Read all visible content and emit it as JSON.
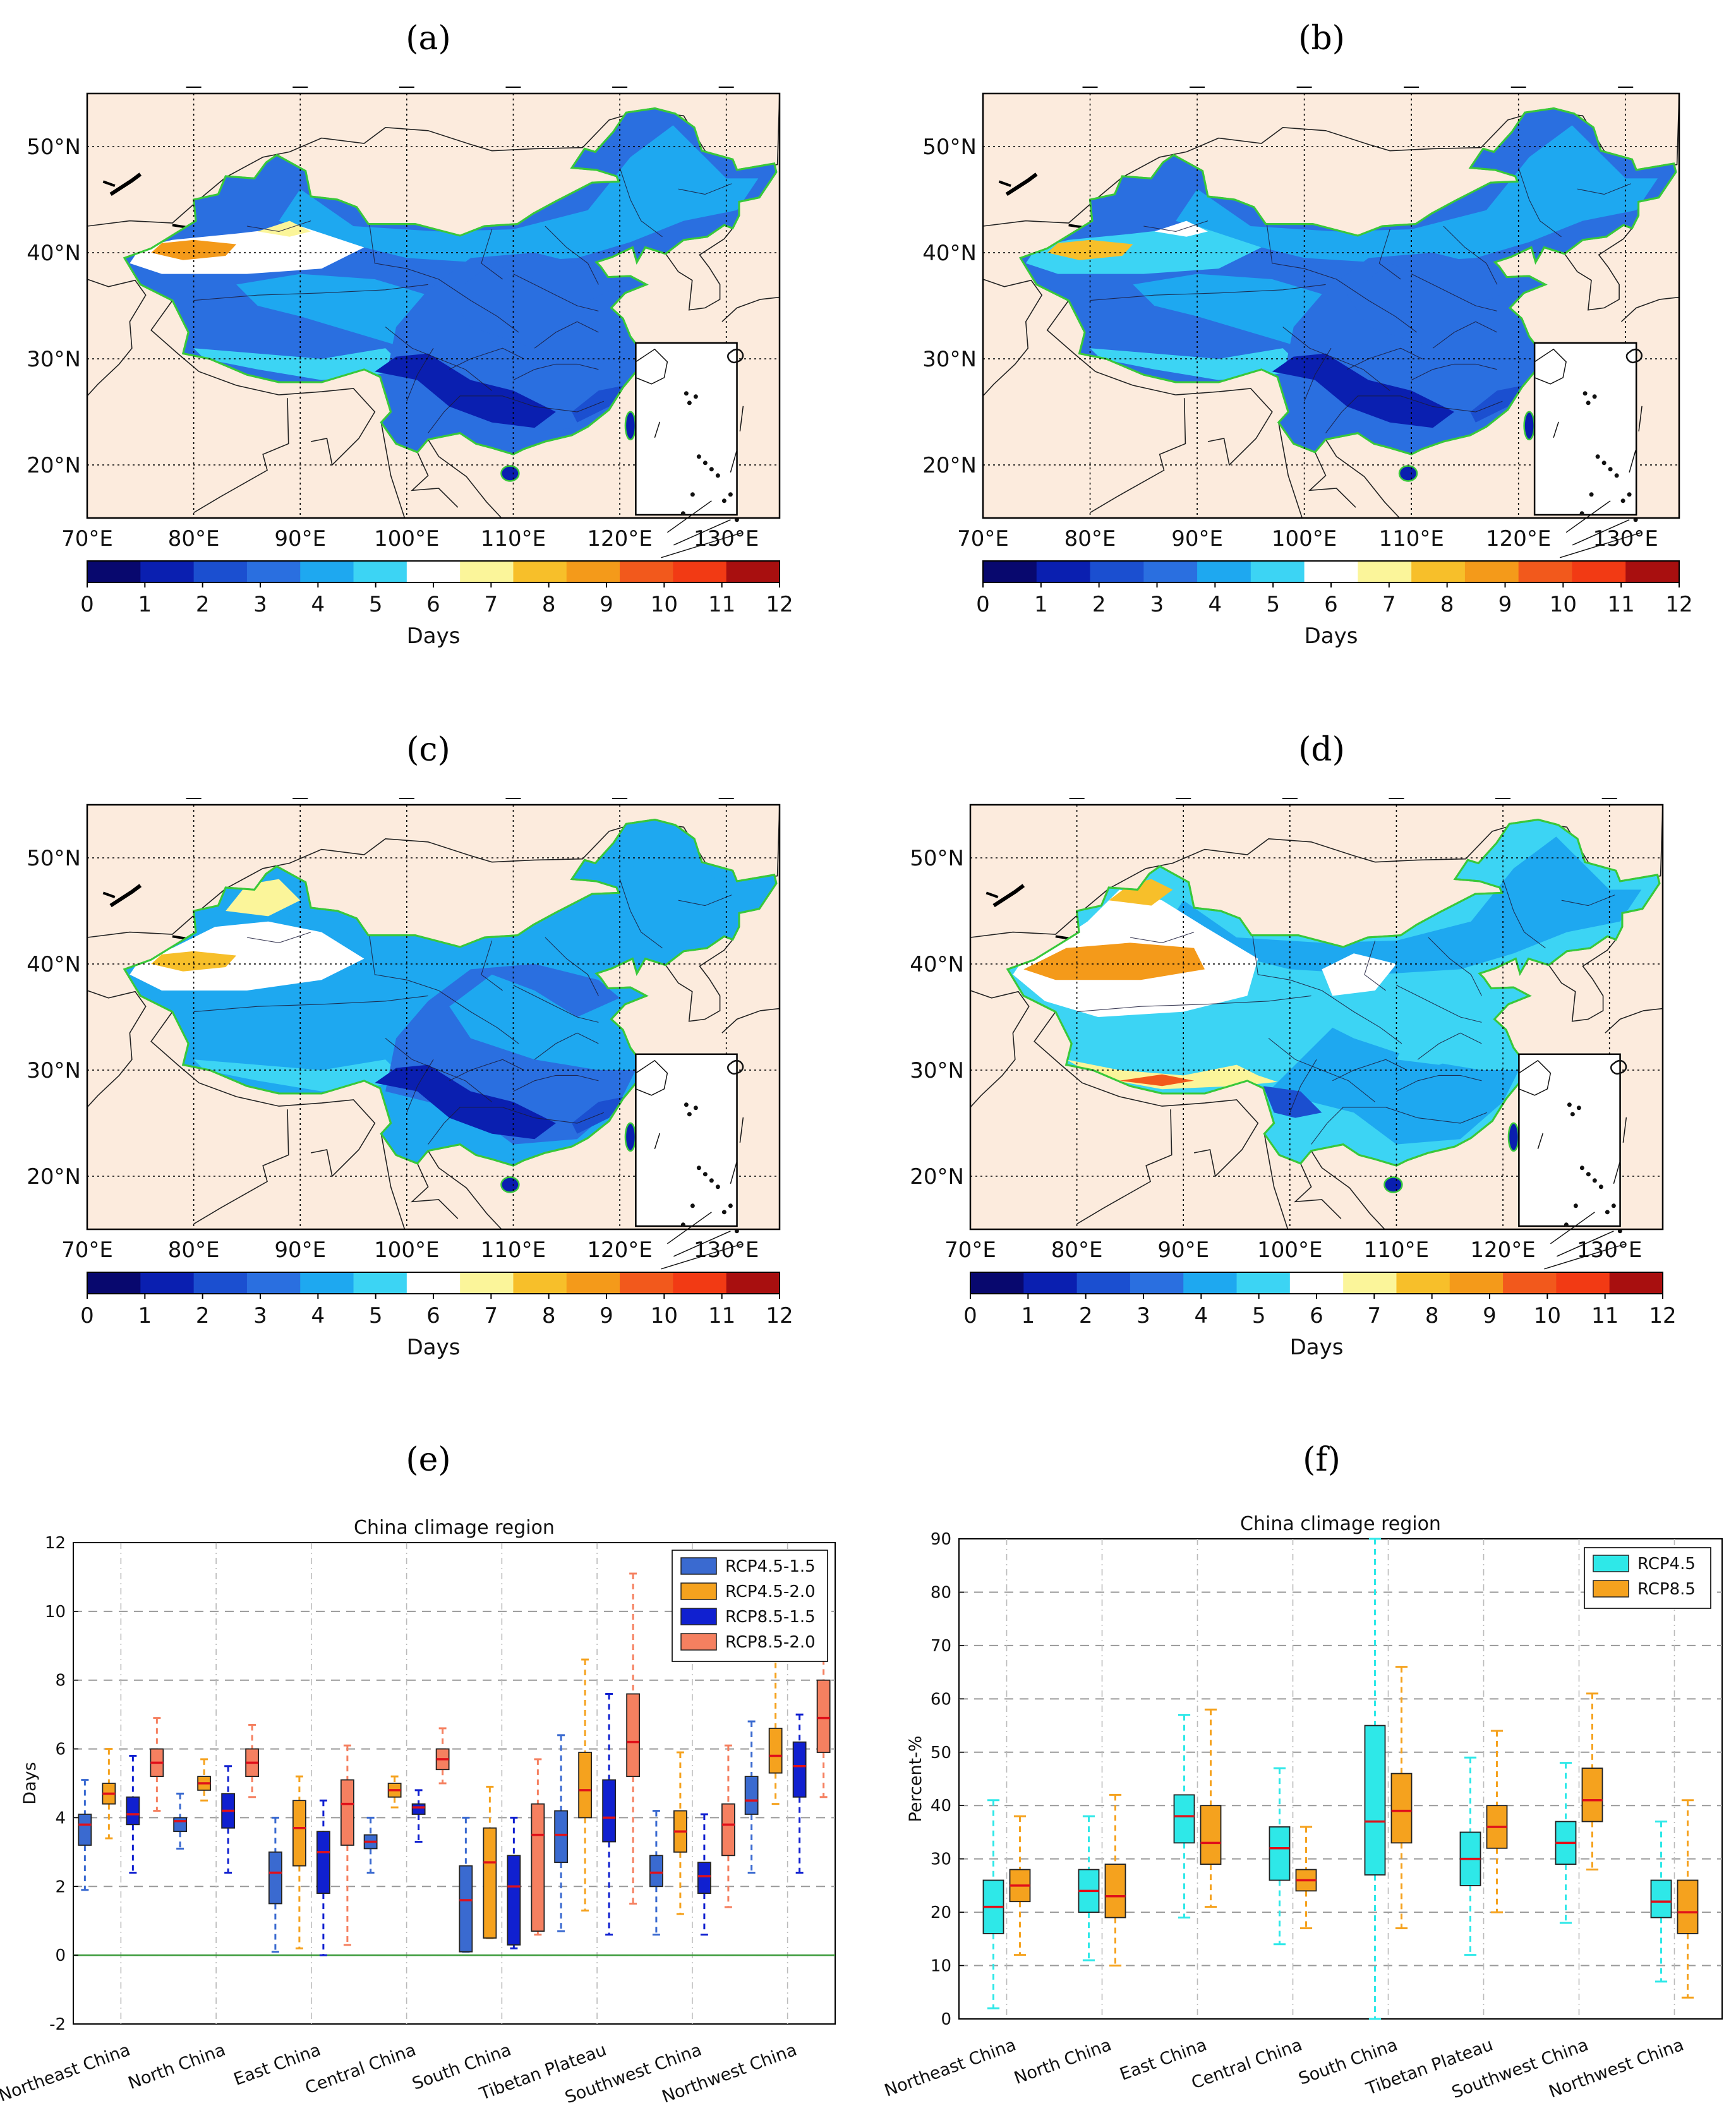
{
  "panels": {
    "a": {
      "label": "(a)"
    },
    "b": {
      "label": "(b)"
    },
    "c": {
      "label": "(c)"
    },
    "d": {
      "label": "(d)"
    },
    "e": {
      "label": "(e)"
    },
    "f": {
      "label": "(f)"
    }
  },
  "maps": {
    "lon_labels": [
      "70°E",
      "80°E",
      "90°E",
      "100°E",
      "110°E",
      "120°E",
      "130°E"
    ],
    "lat_labels": [
      "20°N",
      "30°N",
      "40°N",
      "50°N"
    ],
    "colorbar": {
      "ticks": [
        "0",
        "1",
        "2",
        "3",
        "4",
        "5",
        "6",
        "7",
        "8",
        "9",
        "10",
        "11",
        "12"
      ],
      "label": "Days",
      "colors": [
        "#08086e",
        "#0a1fb0",
        "#1b4fd0",
        "#2a6fe0",
        "#1ea8f0",
        "#3cd4f4",
        "#ffffff",
        "#fbf59a",
        "#f7bf2a",
        "#f49a1a",
        "#f2591c",
        "#f23a14",
        "#a80f0f"
      ]
    }
  },
  "chart_data": [
    {
      "type": "box",
      "title": "China climage region",
      "ylabel": "Days",
      "ylim": [
        -2,
        12
      ],
      "yticks": [
        -2,
        0,
        2,
        4,
        6,
        8,
        10,
        12
      ],
      "categories": [
        "Northeast China",
        "North China",
        "East China",
        "Central China",
        "South China",
        "Tibetan Plateau",
        "Southwest China",
        "Northwest China"
      ],
      "legend_position": "top-right",
      "series": [
        {
          "name": "RCP4.5-1.5",
          "color": "#3a6ad0",
          "boxes": [
            {
              "whislo": 1.9,
              "q1": 3.2,
              "med": 3.8,
              "q3": 4.1,
              "whishi": 5.1
            },
            {
              "whislo": 3.1,
              "q1": 3.6,
              "med": 3.9,
              "q3": 4.0,
              "whishi": 4.7
            },
            {
              "whislo": 0.1,
              "q1": 1.5,
              "med": 2.4,
              "q3": 3.0,
              "whishi": 4.0
            },
            {
              "whislo": 2.4,
              "q1": 3.1,
              "med": 3.3,
              "q3": 3.5,
              "whishi": 4.0
            },
            {
              "whislo": 0.1,
              "q1": 0.1,
              "med": 1.6,
              "q3": 2.6,
              "whishi": 4.0
            },
            {
              "whislo": 0.7,
              "q1": 2.7,
              "med": 3.5,
              "q3": 4.2,
              "whishi": 6.4
            },
            {
              "whislo": 0.6,
              "q1": 2.0,
              "med": 2.4,
              "q3": 2.9,
              "whishi": 4.2
            },
            {
              "whislo": 2.4,
              "q1": 4.1,
              "med": 4.5,
              "q3": 5.2,
              "whishi": 6.8
            }
          ]
        },
        {
          "name": "RCP4.5-2.0",
          "color": "#f5a21e",
          "boxes": [
            {
              "whislo": 3.4,
              "q1": 4.4,
              "med": 4.7,
              "q3": 5.0,
              "whishi": 6.0
            },
            {
              "whislo": 4.5,
              "q1": 4.8,
              "med": 5.0,
              "q3": 5.2,
              "whishi": 5.7
            },
            {
              "whislo": 0.2,
              "q1": 2.6,
              "med": 3.7,
              "q3": 4.5,
              "whishi": 5.2
            },
            {
              "whislo": 4.3,
              "q1": 4.6,
              "med": 4.8,
              "q3": 5.0,
              "whishi": 5.2
            },
            {
              "whislo": 0.5,
              "q1": 0.5,
              "med": 2.7,
              "q3": 3.7,
              "whishi": 4.9
            },
            {
              "whislo": 1.3,
              "q1": 4.0,
              "med": 4.8,
              "q3": 5.9,
              "whishi": 8.6
            },
            {
              "whislo": 1.2,
              "q1": 3.0,
              "med": 3.6,
              "q3": 4.2,
              "whishi": 5.9
            },
            {
              "whislo": 4.4,
              "q1": 5.3,
              "med": 5.8,
              "q3": 6.6,
              "whishi": 9.1
            }
          ]
        },
        {
          "name": "RCP8.5-1.5",
          "color": "#1020d0",
          "boxes": [
            {
              "whislo": 2.4,
              "q1": 3.8,
              "med": 4.1,
              "q3": 4.6,
              "whishi": 5.8
            },
            {
              "whislo": 2.4,
              "q1": 3.7,
              "med": 4.2,
              "q3": 4.7,
              "whishi": 5.5
            },
            {
              "whislo": 0.0,
              "q1": 1.8,
              "med": 3.0,
              "q3": 3.6,
              "whishi": 4.5
            },
            {
              "whislo": 3.3,
              "q1": 4.1,
              "med": 4.3,
              "q3": 4.4,
              "whishi": 4.8
            },
            {
              "whislo": 0.2,
              "q1": 0.3,
              "med": 2.0,
              "q3": 2.9,
              "whishi": 4.0
            },
            {
              "whislo": 0.6,
              "q1": 3.3,
              "med": 4.0,
              "q3": 5.1,
              "whishi": 7.6
            },
            {
              "whislo": 0.6,
              "q1": 1.8,
              "med": 2.3,
              "q3": 2.7,
              "whishi": 4.1
            },
            {
              "whislo": 2.4,
              "q1": 4.6,
              "med": 5.5,
              "q3": 6.2,
              "whishi": 7.0
            }
          ]
        },
        {
          "name": "RCP8.5-2.0",
          "color": "#f58060",
          "boxes": [
            {
              "whislo": 4.2,
              "q1": 5.2,
              "med": 5.6,
              "q3": 6.0,
              "whishi": 6.9
            },
            {
              "whislo": 4.6,
              "q1": 5.2,
              "med": 5.6,
              "q3": 6.0,
              "whishi": 6.7
            },
            {
              "whislo": 0.3,
              "q1": 3.2,
              "med": 4.4,
              "q3": 5.1,
              "whishi": 6.1
            },
            {
              "whislo": 5.0,
              "q1": 5.4,
              "med": 5.7,
              "q3": 6.0,
              "whishi": 6.6
            },
            {
              "whislo": 0.6,
              "q1": 0.7,
              "med": 3.5,
              "q3": 4.4,
              "whishi": 5.7
            },
            {
              "whislo": 1.5,
              "q1": 5.2,
              "med": 6.2,
              "q3": 7.6,
              "whishi": 11.1
            },
            {
              "whislo": 1.4,
              "q1": 2.9,
              "med": 3.8,
              "q3": 4.4,
              "whishi": 6.1
            },
            {
              "whislo": 4.6,
              "q1": 5.9,
              "med": 6.9,
              "q3": 8.0,
              "whishi": 9.2
            }
          ]
        }
      ]
    },
    {
      "type": "box",
      "title": "China climage region",
      "ylabel": "Percent-%",
      "ylim": [
        0,
        90
      ],
      "yticks": [
        0,
        10,
        20,
        30,
        40,
        50,
        60,
        70,
        80,
        90
      ],
      "categories": [
        "Northeast China",
        "North China",
        "East China",
        "Central China",
        "South China",
        "Tibetan Plateau",
        "Southwest China",
        "Northwest China"
      ],
      "legend_position": "top-right",
      "series": [
        {
          "name": "RCP4.5",
          "color": "#2ee8e8",
          "boxes": [
            {
              "whislo": 2,
              "q1": 16,
              "med": 21,
              "q3": 26,
              "whishi": 41
            },
            {
              "whislo": 11,
              "q1": 20,
              "med": 24,
              "q3": 28,
              "whishi": 38
            },
            {
              "whislo": 19,
              "q1": 33,
              "med": 38,
              "q3": 42,
              "whishi": 57
            },
            {
              "whislo": 14,
              "q1": 26,
              "med": 32,
              "q3": 36,
              "whishi": 47
            },
            {
              "whislo": 0,
              "q1": 27,
              "med": 37,
              "q3": 55,
              "whishi": 90
            },
            {
              "whislo": 12,
              "q1": 25,
              "med": 30,
              "q3": 35,
              "whishi": 49
            },
            {
              "whislo": 18,
              "q1": 29,
              "med": 33,
              "q3": 37,
              "whishi": 48
            },
            {
              "whislo": 7,
              "q1": 19,
              "med": 22,
              "q3": 26,
              "whishi": 37
            }
          ]
        },
        {
          "name": "RCP8.5",
          "color": "#f5a21e",
          "boxes": [
            {
              "whislo": 12,
              "q1": 22,
              "med": 25,
              "q3": 28,
              "whishi": 38
            },
            {
              "whislo": 10,
              "q1": 19,
              "med": 23,
              "q3": 29,
              "whishi": 42
            },
            {
              "whislo": 21,
              "q1": 29,
              "med": 33,
              "q3": 40,
              "whishi": 58
            },
            {
              "whislo": 17,
              "q1": 24,
              "med": 26,
              "q3": 28,
              "whishi": 36
            },
            {
              "whislo": 17,
              "q1": 33,
              "med": 39,
              "q3": 46,
              "whishi": 66
            },
            {
              "whislo": 20,
              "q1": 32,
              "med": 36,
              "q3": 40,
              "whishi": 54
            },
            {
              "whislo": 28,
              "q1": 37,
              "med": 41,
              "q3": 47,
              "whishi": 61
            },
            {
              "whislo": 4,
              "q1": 16,
              "med": 20,
              "q3": 26,
              "whishi": 41
            }
          ]
        }
      ]
    }
  ]
}
